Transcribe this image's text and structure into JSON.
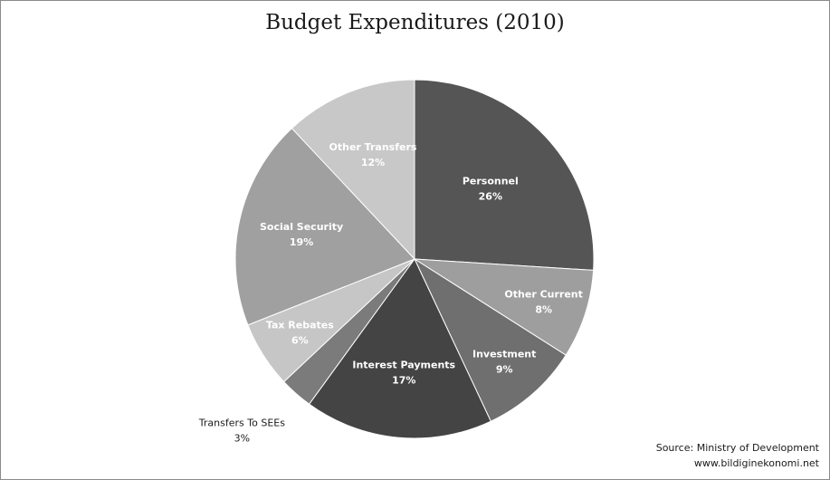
{
  "chart_data": {
    "type": "pie",
    "title": "Budget Expenditures (2010)",
    "categories": [
      "Personnel",
      "Other Current",
      "Investment",
      "Interest Payments",
      "Transfers To SEEs",
      "Tax Rebates",
      "Social Security",
      "Other Transfers"
    ],
    "values": [
      26,
      8,
      9,
      17,
      3,
      6,
      19,
      12
    ],
    "value_labels": [
      "26%",
      "8%",
      "9%",
      "17%",
      "3%",
      "6%",
      "19%",
      "12%"
    ],
    "colors": [
      "#555555",
      "#9e9e9e",
      "#6f6f6f",
      "#444444",
      "#7b7b7b",
      "#c6c6c6",
      "#a0a0a0",
      "#c8c8c8"
    ],
    "label_colors": [
      "#ffffff",
      "#ffffff",
      "#ffffff",
      "#ffffff",
      "#1a1a1a",
      "#ffffff",
      "#ffffff",
      "#ffffff"
    ],
    "start_angle_deg": 0,
    "direction": "clockwise"
  },
  "source": {
    "line1": "Source: Ministry of Development",
    "line2": "www.bildiginekonomi.net"
  }
}
